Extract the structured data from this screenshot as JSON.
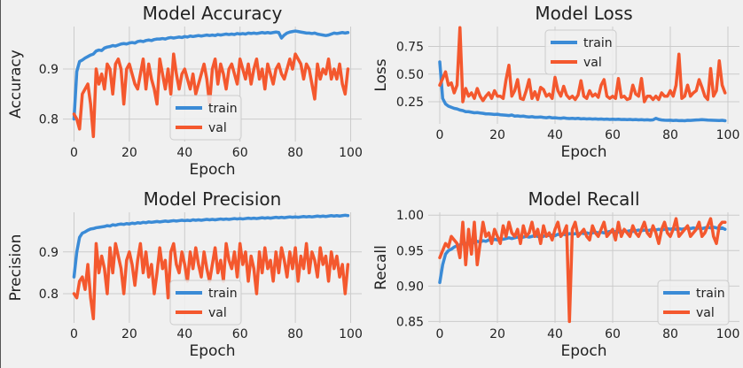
{
  "colors": {
    "train": "#3b8bd6",
    "val": "#f4582e",
    "background": "#f0f0f0",
    "grid": "#cbcbcb"
  },
  "chart_data": [
    {
      "id": "accuracy",
      "type": "line",
      "title": "Model Accuracy",
      "xlabel": "Epoch",
      "ylabel": "Accuracy",
      "xlim": [
        -4,
        104
      ],
      "ylim": [
        0.755,
        0.985
      ],
      "xticks": [
        0,
        20,
        40,
        60,
        80,
        100
      ],
      "yticks": [
        0.8,
        0.9
      ],
      "ytick_labels": [
        "0.8",
        "0.9"
      ],
      "grid": true,
      "legend": "lower center",
      "x_start": 0,
      "series": [
        {
          "name": "train",
          "color": "#3b8bd6",
          "values": [
            0.8,
            0.895,
            0.915,
            0.918,
            0.922,
            0.925,
            0.928,
            0.93,
            0.936,
            0.938,
            0.937,
            0.942,
            0.944,
            0.945,
            0.947,
            0.946,
            0.948,
            0.95,
            0.951,
            0.95,
            0.952,
            0.953,
            0.952,
            0.955,
            0.956,
            0.955,
            0.957,
            0.958,
            0.957,
            0.959,
            0.96,
            0.96,
            0.961,
            0.96,
            0.962,
            0.963,
            0.962,
            0.963,
            0.964,
            0.963,
            0.965,
            0.964,
            0.966,
            0.965,
            0.966,
            0.967,
            0.966,
            0.967,
            0.968,
            0.967,
            0.968,
            0.967,
            0.969,
            0.968,
            0.969,
            0.97,
            0.969,
            0.97,
            0.969,
            0.971,
            0.97,
            0.971,
            0.97,
            0.972,
            0.971,
            0.972,
            0.971,
            0.972,
            0.973,
            0.972,
            0.973,
            0.972,
            0.973,
            0.974,
            0.973,
            0.962,
            0.968,
            0.972,
            0.974,
            0.975,
            0.976,
            0.975,
            0.974,
            0.973,
            0.972,
            0.972,
            0.971,
            0.972,
            0.97,
            0.969,
            0.968,
            0.967,
            0.968,
            0.97,
            0.972,
            0.971,
            0.972,
            0.973,
            0.972,
            0.973
          ]
        },
        {
          "name": "val",
          "color": "#f4582e",
          "values": [
            0.81,
            0.8,
            0.78,
            0.85,
            0.86,
            0.87,
            0.83,
            0.765,
            0.9,
            0.87,
            0.89,
            0.86,
            0.91,
            0.9,
            0.85,
            0.91,
            0.92,
            0.9,
            0.83,
            0.9,
            0.91,
            0.89,
            0.87,
            0.86,
            0.89,
            0.92,
            0.86,
            0.91,
            0.88,
            0.86,
            0.83,
            0.92,
            0.89,
            0.86,
            0.9,
            0.85,
            0.93,
            0.89,
            0.86,
            0.89,
            0.9,
            0.88,
            0.86,
            0.89,
            0.85,
            0.87,
            0.89,
            0.91,
            0.88,
            0.83,
            0.9,
            0.92,
            0.87,
            0.91,
            0.89,
            0.86,
            0.9,
            0.91,
            0.89,
            0.87,
            0.92,
            0.9,
            0.88,
            0.91,
            0.87,
            0.9,
            0.92,
            0.88,
            0.9,
            0.86,
            0.91,
            0.89,
            0.87,
            0.9,
            0.91,
            0.89,
            0.88,
            0.9,
            0.92,
            0.9,
            0.93,
            0.92,
            0.91,
            0.88,
            0.91,
            0.9,
            0.87,
            0.84,
            0.91,
            0.88,
            0.9,
            0.89,
            0.92,
            0.88,
            0.9,
            0.88,
            0.91,
            0.87,
            0.85,
            0.9
          ]
        }
      ]
    },
    {
      "id": "loss",
      "type": "line",
      "title": "Model Loss",
      "xlabel": "Epoch",
      "ylabel": "Loss",
      "xlim": [
        -4,
        104
      ],
      "ylim": [
        0.05,
        0.93
      ],
      "xticks": [
        0,
        20,
        40,
        60,
        80,
        100
      ],
      "yticks": [
        0.25,
        0.5,
        0.75
      ],
      "ytick_labels": [
        "0.25",
        "0.50",
        "0.75"
      ],
      "grid": true,
      "legend": "upper center",
      "x_start": 0,
      "series": [
        {
          "name": "train",
          "color": "#3b8bd6",
          "values": [
            0.61,
            0.28,
            0.23,
            0.21,
            0.2,
            0.19,
            0.185,
            0.175,
            0.17,
            0.16,
            0.16,
            0.155,
            0.15,
            0.152,
            0.148,
            0.145,
            0.14,
            0.14,
            0.138,
            0.135,
            0.137,
            0.132,
            0.13,
            0.128,
            0.125,
            0.13,
            0.12,
            0.122,
            0.118,
            0.12,
            0.115,
            0.112,
            0.115,
            0.11,
            0.11,
            0.112,
            0.108,
            0.105,
            0.11,
            0.104,
            0.105,
            0.102,
            0.1,
            0.104,
            0.1,
            0.098,
            0.1,
            0.097,
            0.1,
            0.095,
            0.097,
            0.094,
            0.096,
            0.093,
            0.095,
            0.092,
            0.094,
            0.091,
            0.093,
            0.09,
            0.092,
            0.09,
            0.092,
            0.089,
            0.09,
            0.088,
            0.09,
            0.087,
            0.089,
            0.086,
            0.088,
            0.085,
            0.087,
            0.084,
            0.086,
            0.1,
            0.09,
            0.085,
            0.083,
            0.082,
            0.083,
            0.08,
            0.082,
            0.079,
            0.08,
            0.078,
            0.082,
            0.081,
            0.083,
            0.085,
            0.086,
            0.088,
            0.086,
            0.084,
            0.083,
            0.082,
            0.081,
            0.08,
            0.082,
            0.078
          ]
        },
        {
          "name": "val",
          "color": "#f4582e",
          "values": [
            0.4,
            0.46,
            0.52,
            0.4,
            0.42,
            0.33,
            0.4,
            0.92,
            0.25,
            0.37,
            0.3,
            0.33,
            0.28,
            0.37,
            0.3,
            0.26,
            0.3,
            0.33,
            0.28,
            0.35,
            0.3,
            0.3,
            0.28,
            0.45,
            0.58,
            0.3,
            0.35,
            0.45,
            0.28,
            0.27,
            0.35,
            0.45,
            0.28,
            0.34,
            0.27,
            0.38,
            0.36,
            0.3,
            0.32,
            0.28,
            0.47,
            0.35,
            0.3,
            0.39,
            0.31,
            0.28,
            0.3,
            0.27,
            0.31,
            0.44,
            0.3,
            0.28,
            0.35,
            0.3,
            0.32,
            0.29,
            0.4,
            0.45,
            0.3,
            0.28,
            0.3,
            0.28,
            0.46,
            0.29,
            0.3,
            0.27,
            0.28,
            0.4,
            0.32,
            0.3,
            0.46,
            0.25,
            0.3,
            0.3,
            0.27,
            0.3,
            0.27,
            0.33,
            0.3,
            0.3,
            0.35,
            0.3,
            0.4,
            0.68,
            0.28,
            0.3,
            0.4,
            0.3,
            0.33,
            0.35,
            0.45,
            0.38,
            0.3,
            0.27,
            0.55,
            0.3,
            0.35,
            0.62,
            0.4,
            0.33
          ]
        }
      ]
    },
    {
      "id": "precision",
      "type": "line",
      "title": "Model Precision",
      "xlabel": "Epoch",
      "ylabel": "Precision",
      "xlim": [
        -4,
        104
      ],
      "ylim": [
        0.73,
        0.995
      ],
      "xticks": [
        0,
        20,
        40,
        60,
        80,
        100
      ],
      "yticks": [
        0.8,
        0.9
      ],
      "ytick_labels": [
        "0.8",
        "0.9"
      ],
      "grid": true,
      "legend": "lower center",
      "x_start": 0,
      "series": [
        {
          "name": "train",
          "color": "#3b8bd6",
          "values": [
            0.84,
            0.9,
            0.935,
            0.945,
            0.948,
            0.952,
            0.955,
            0.956,
            0.958,
            0.959,
            0.96,
            0.961,
            0.963,
            0.962,
            0.965,
            0.964,
            0.966,
            0.967,
            0.966,
            0.968,
            0.967,
            0.969,
            0.968,
            0.97,
            0.969,
            0.971,
            0.97,
            0.972,
            0.971,
            0.972,
            0.973,
            0.972,
            0.973,
            0.974,
            0.973,
            0.974,
            0.975,
            0.974,
            0.975,
            0.976,
            0.975,
            0.976,
            0.975,
            0.977,
            0.976,
            0.977,
            0.976,
            0.977,
            0.978,
            0.977,
            0.978,
            0.977,
            0.978,
            0.979,
            0.978,
            0.979,
            0.978,
            0.979,
            0.98,
            0.979,
            0.98,
            0.979,
            0.98,
            0.981,
            0.98,
            0.981,
            0.98,
            0.981,
            0.982,
            0.981,
            0.982,
            0.981,
            0.982,
            0.983,
            0.982,
            0.983,
            0.982,
            0.983,
            0.984,
            0.983,
            0.984,
            0.983,
            0.984,
            0.985,
            0.984,
            0.985,
            0.984,
            0.985,
            0.986,
            0.985,
            0.986,
            0.985,
            0.986,
            0.987,
            0.986,
            0.987,
            0.986,
            0.987,
            0.988,
            0.987
          ]
        },
        {
          "name": "val",
          "color": "#f4582e",
          "values": [
            0.8,
            0.79,
            0.83,
            0.84,
            0.81,
            0.87,
            0.79,
            0.74,
            0.92,
            0.85,
            0.89,
            0.86,
            0.8,
            0.91,
            0.85,
            0.92,
            0.89,
            0.86,
            0.8,
            0.88,
            0.9,
            0.87,
            0.82,
            0.88,
            0.92,
            0.85,
            0.9,
            0.84,
            0.87,
            0.8,
            0.85,
            0.91,
            0.86,
            0.88,
            0.79,
            0.9,
            0.92,
            0.87,
            0.85,
            0.9,
            0.87,
            0.83,
            0.9,
            0.86,
            0.91,
            0.87,
            0.84,
            0.9,
            0.86,
            0.83,
            0.87,
            0.91,
            0.85,
            0.88,
            0.83,
            0.92,
            0.88,
            0.86,
            0.9,
            0.84,
            0.92,
            0.87,
            0.9,
            0.83,
            0.89,
            0.86,
            0.8,
            0.9,
            0.85,
            0.91,
            0.86,
            0.88,
            0.83,
            0.9,
            0.85,
            0.91,
            0.88,
            0.84,
            0.9,
            0.86,
            0.91,
            0.83,
            0.89,
            0.86,
            0.92,
            0.85,
            0.9,
            0.88,
            0.84,
            0.91,
            0.87,
            0.89,
            0.83,
            0.9,
            0.86,
            0.89,
            0.84,
            0.87,
            0.8,
            0.87
          ]
        }
      ]
    },
    {
      "id": "recall",
      "type": "line",
      "title": "Model Recall",
      "xlabel": "Epoch",
      "ylabel": "Recall",
      "xlim": [
        -4,
        104
      ],
      "ylim": [
        0.848,
        1.004
      ],
      "xticks": [
        0,
        20,
        40,
        60,
        80,
        100
      ],
      "yticks": [
        0.85,
        0.9,
        0.95,
        1.0
      ],
      "ytick_labels": [
        "0.85",
        "0.90",
        "0.95",
        "1.00"
      ],
      "grid": true,
      "legend": "lower right",
      "x_start": 0,
      "series": [
        {
          "name": "train",
          "color": "#3b8bd6",
          "values": [
            0.905,
            0.93,
            0.945,
            0.95,
            0.952,
            0.955,
            0.957,
            0.958,
            0.96,
            0.96,
            0.961,
            0.962,
            0.961,
            0.963,
            0.962,
            0.964,
            0.963,
            0.965,
            0.964,
            0.966,
            0.965,
            0.967,
            0.966,
            0.967,
            0.968,
            0.967,
            0.968,
            0.969,
            0.968,
            0.969,
            0.97,
            0.969,
            0.97,
            0.971,
            0.97,
            0.971,
            0.97,
            0.972,
            0.971,
            0.972,
            0.971,
            0.973,
            0.972,
            0.973,
            0.972,
            0.974,
            0.973,
            0.974,
            0.973,
            0.975,
            0.974,
            0.975,
            0.974,
            0.975,
            0.976,
            0.975,
            0.976,
            0.975,
            0.976,
            0.977,
            0.976,
            0.977,
            0.976,
            0.977,
            0.978,
            0.977,
            0.978,
            0.977,
            0.978,
            0.979,
            0.978,
            0.979,
            0.978,
            0.979,
            0.98,
            0.979,
            0.98,
            0.979,
            0.98,
            0.981,
            0.98,
            0.981,
            0.98,
            0.981,
            0.98,
            0.981,
            0.982,
            0.981,
            0.982,
            0.981,
            0.982,
            0.981,
            0.982,
            0.983,
            0.982,
            0.983,
            0.982,
            0.981,
            0.982,
            0.98
          ]
        },
        {
          "name": "val",
          "color": "#f4582e",
          "values": [
            0.94,
            0.95,
            0.96,
            0.955,
            0.97,
            0.965,
            0.96,
            0.94,
            0.99,
            0.93,
            0.98,
            0.945,
            0.99,
            0.93,
            0.96,
            0.99,
            0.97,
            0.975,
            0.96,
            0.98,
            0.97,
            0.96,
            0.985,
            0.97,
            0.99,
            0.975,
            0.97,
            0.98,
            0.96,
            0.985,
            0.97,
            0.975,
            0.99,
            0.97,
            0.98,
            0.96,
            0.985,
            0.97,
            0.975,
            0.965,
            0.98,
            0.99,
            0.97,
            0.975,
            0.985,
            0.85,
            0.98,
            0.99,
            0.97,
            0.975,
            0.98,
            0.97,
            0.965,
            0.985,
            0.975,
            0.97,
            0.98,
            0.99,
            0.97,
            0.975,
            0.98,
            0.965,
            0.99,
            0.97,
            0.98,
            0.975,
            0.97,
            0.985,
            0.975,
            0.97,
            0.98,
            0.99,
            0.975,
            0.97,
            0.985,
            0.975,
            0.96,
            0.98,
            0.99,
            0.975,
            0.97,
            0.98,
            0.995,
            0.97,
            0.975,
            0.98,
            0.985,
            0.97,
            0.975,
            0.98,
            0.99,
            0.97,
            0.975,
            0.985,
            0.995,
            0.97,
            0.96,
            0.985,
            0.99,
            0.99
          ]
        }
      ]
    }
  ]
}
